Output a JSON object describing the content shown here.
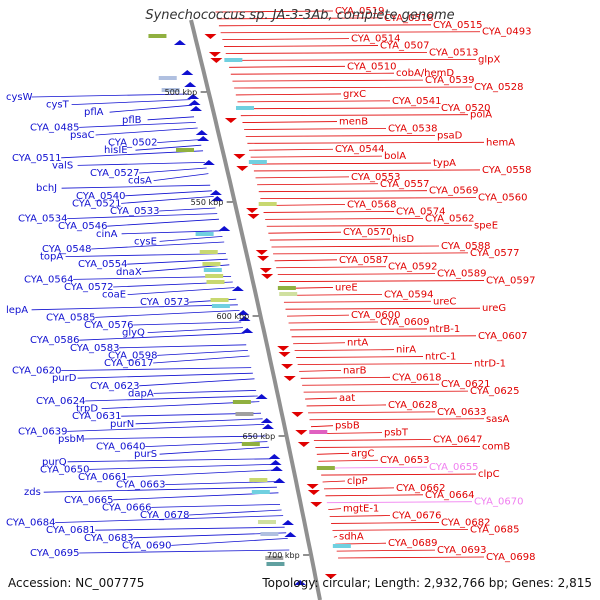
{
  "title": "Synechococcus sp. JA-3-3Ab, complete genome",
  "footer": {
    "accession": "Accession: NC_007775",
    "topology": "Topology: circular; Length: 2,932,766 bp; Genes: 2,815"
  },
  "colors": {
    "forward": "#e00000",
    "reverse": "#1010d0",
    "pseudogene": "#f080f0",
    "backbone": "#909090"
  },
  "kbp_markers": [
    "500 kbp",
    "550 kbp",
    "600 kbp",
    "650 kbp",
    "700 kbp"
  ],
  "genes_left": [
    "cysW",
    "cysT",
    "pflA",
    "pflB",
    "CYA_0485",
    "psaC",
    "CYA_0502",
    "hisIE",
    "CYA_0511",
    "valS",
    "CYA_0527",
    "cdsA",
    "bchJ",
    "CYA_0540",
    "CYA_0521",
    "CYA_0533",
    "CYA_0534",
    "CYA_0546",
    "cinA",
    "cysE",
    "CYA_0548",
    "topA",
    "CYA_0554",
    "dnaX",
    "CYA_0564",
    "CYA_0572",
    "coaE",
    "CYA_0573",
    "lepA",
    "CYA_0585",
    "CYA_0576",
    "glyQ",
    "CYA_0586",
    "CYA_0583",
    "CYA_0598",
    "CYA_0617",
    "CYA_0620",
    "purD",
    "CYA_0623",
    "dapA",
    "CYA_0624",
    "trpD",
    "CYA_0631",
    "purN",
    "CYA_0639",
    "psbM",
    "CYA_0640",
    "purS",
    "purQ",
    "CYA_0650",
    "CYA_0661",
    "CYA_0663",
    "zds",
    "CYA_0665",
    "CYA_0666",
    "CYA_0678",
    "CYA_0684",
    "CYA_0681",
    "CYA_0683",
    "CYA_0690",
    "CYA_0695"
  ],
  "genes_right": [
    "CYA_0519",
    "CYA_0518",
    "CYA_0515",
    "CYA_0493",
    "CYA_0514",
    "CYA_0507",
    "CYA_0513",
    "glpX",
    "CYA_0510",
    "cobA/hemD",
    "CYA_0539",
    "CYA_0528",
    "grxC",
    "CYA_0541",
    "CYA_0520",
    "polA",
    "menB",
    "CYA_0538",
    "psaD",
    "hemA",
    "CYA_0544",
    "bolA",
    "typA",
    "CYA_0558",
    "CYA_0553",
    "CYA_0557",
    "CYA_0569",
    "CYA_0560",
    "CYA_0568",
    "CYA_0574",
    "CYA_0562",
    "speE",
    "CYA_0570",
    "hisD",
    "CYA_0588",
    "CYA_0577",
    "CYA_0587",
    "CYA_0592",
    "CYA_0589",
    "CYA_0597",
    "ureE",
    "CYA_0594",
    "ureC",
    "ureG",
    "CYA_0600",
    "CYA_0609",
    "ntrB-1",
    "CYA_0607",
    "nrtA",
    "nirA",
    "ntrC-1",
    "ntrD-1",
    "narB",
    "CYA_0618",
    "CYA_0621",
    "CYA_0625",
    "aat",
    "CYA_0628",
    "CYA_0633",
    "sasA",
    "psbB",
    "psbT",
    "CYA_0647",
    "comB",
    "argC",
    "CYA_0653",
    "CYA_0655",
    "clpC",
    "clpP",
    "CYA_0662",
    "CYA_0664",
    "CYA_0670",
    "mgtE-1",
    "CYA_0676",
    "CYA_0682",
    "CYA_0685",
    "sdhA",
    "CYA_0689",
    "CYA_0693",
    "CYA_0698"
  ]
}
